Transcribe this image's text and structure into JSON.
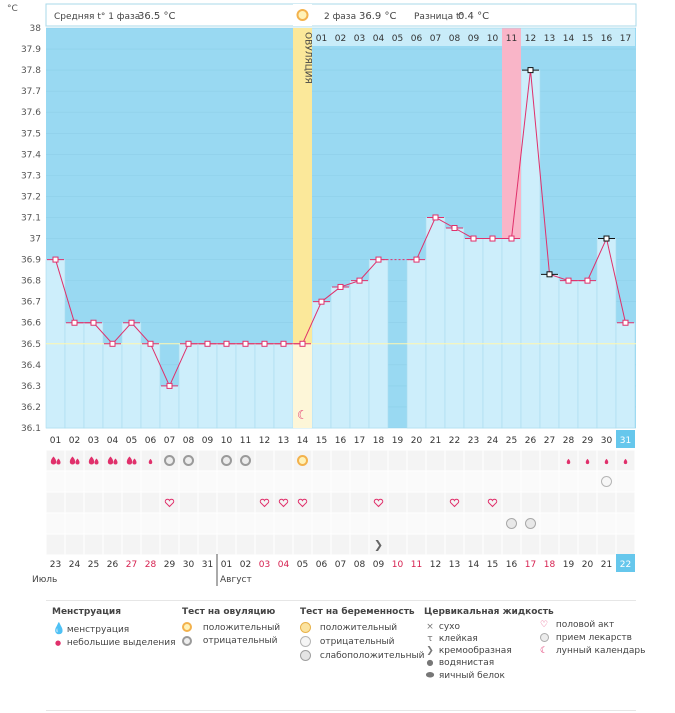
{
  "header": {
    "unit": "°C",
    "phase1_label": "Средняя t° 1 фаза",
    "phase1_value": "36.5 °C",
    "phase2_label": "2 фаза",
    "phase2_value": "36.9 °C",
    "diff_label": "Разница t°",
    "diff_value": "0.4 °C"
  },
  "ovulation_label": "ОВУЛЯЦИЯ",
  "colors": {
    "plot_bg": "#99d9f2",
    "column_fill": "#cdeefb",
    "column_border": "#a9dcef",
    "line": "#e0306b",
    "ovulation": "#fbe89a",
    "highlight_day": "#f9b5c8",
    "today": "#66c7ec",
    "weekend_red": "#d6204f"
  },
  "chart_data": {
    "type": "line",
    "title": "",
    "ylabel": "°C",
    "ylim": [
      36.1,
      38.0
    ],
    "y_ticks": [
      "38",
      "37.9",
      "37.8",
      "37.7",
      "37.6",
      "37.5",
      "37.4",
      "37.3",
      "37.2",
      "37.1",
      "37",
      "36.9",
      "36.8",
      "36.7",
      "36.6",
      "36.5",
      "36.4",
      "36.3",
      "36.2",
      "36.1"
    ],
    "cycle_days": [
      "01",
      "02",
      "03",
      "04",
      "05",
      "06",
      "07",
      "08",
      "09",
      "10",
      "11",
      "12",
      "13",
      "14",
      "15",
      "16",
      "17",
      "18",
      "19",
      "20",
      "21",
      "22",
      "23",
      "24",
      "25",
      "26",
      "27",
      "28",
      "29",
      "30",
      "31"
    ],
    "phase2_days": [
      "01",
      "02",
      "03",
      "04",
      "05",
      "06",
      "07",
      "08",
      "09",
      "10",
      "11",
      "12",
      "13",
      "14",
      "15",
      "16",
      "17"
    ],
    "dates": [
      "23",
      "24",
      "25",
      "26",
      "27",
      "28",
      "29",
      "30",
      "31",
      "01",
      "02",
      "03",
      "04",
      "05",
      "06",
      "07",
      "08",
      "09",
      "10",
      "11",
      "12",
      "13",
      "14",
      "15",
      "16",
      "17",
      "18",
      "19",
      "20",
      "21",
      "22"
    ],
    "weekend_dates": [
      4,
      5,
      11,
      12,
      18,
      19,
      25,
      26
    ],
    "months": [
      "Июль",
      "Август"
    ],
    "temperatures": [
      36.9,
      36.6,
      36.6,
      36.5,
      36.6,
      36.5,
      36.3,
      36.5,
      36.5,
      36.5,
      36.5,
      36.5,
      36.5,
      36.5,
      36.7,
      36.77,
      36.8,
      36.9,
      null,
      36.9,
      37.1,
      37.05,
      37.0,
      37.0,
      37.0,
      37.8,
      36.83,
      36.8,
      36.8,
      37.0,
      36.6
    ],
    "marker_type": [
      "pink",
      "pink",
      "pink",
      "pink",
      "pink",
      "pink",
      "pink",
      "pink",
      "pink",
      "pink",
      "pink",
      "pink",
      "pink",
      "pink",
      "pink",
      "pink",
      "pink",
      "pink",
      null,
      "pink",
      "pink",
      "pink",
      "pink",
      "pink",
      "pink",
      "black",
      "black",
      "pink",
      "pink",
      "black",
      "pink"
    ],
    "coverline": 36.5,
    "ovulation_day_index": 13,
    "highlight_day_index": 24,
    "today_index": 30
  },
  "row_menstruation": [
    "heavy",
    "heavy",
    "heavy",
    "heavy",
    "heavy",
    "light",
    null,
    null,
    null,
    null,
    null,
    null,
    null,
    null,
    null,
    null,
    null,
    null,
    null,
    null,
    null,
    null,
    null,
    null,
    null,
    null,
    null,
    "light",
    "light",
    "light",
    "light"
  ],
  "row_ovulation_test": [
    null,
    null,
    null,
    null,
    null,
    null,
    "negative",
    "negative",
    null,
    "negative",
    "negative",
    null,
    null,
    "positive",
    null,
    null,
    null,
    null,
    null,
    null,
    null,
    null,
    null,
    null,
    null,
    null,
    null,
    null,
    null,
    null,
    null
  ],
  "row_pregnancy_test": [
    null,
    null,
    null,
    null,
    null,
    null,
    null,
    null,
    null,
    null,
    null,
    null,
    null,
    null,
    null,
    null,
    null,
    null,
    null,
    null,
    null,
    null,
    null,
    null,
    null,
    null,
    null,
    null,
    null,
    "negative",
    null
  ],
  "row_intercourse": [
    null,
    null,
    null,
    null,
    null,
    null,
    "heart",
    null,
    null,
    null,
    null,
    "heart",
    "heart",
    "heart",
    null,
    null,
    null,
    "heart",
    null,
    null,
    null,
    "heart",
    null,
    "heart",
    null,
    null,
    null,
    null,
    null,
    null,
    null
  ],
  "row_medication": [
    null,
    null,
    null,
    null,
    null,
    null,
    null,
    null,
    null,
    null,
    null,
    null,
    null,
    null,
    null,
    null,
    null,
    null,
    null,
    null,
    null,
    null,
    null,
    null,
    "pill",
    "pill",
    null,
    null,
    null,
    null,
    null
  ],
  "row_cervical": [
    null,
    null,
    null,
    null,
    null,
    null,
    null,
    null,
    null,
    null,
    null,
    null,
    null,
    null,
    null,
    null,
    null,
    "creamy",
    null,
    null,
    null,
    null,
    null,
    null,
    null,
    null,
    null,
    null,
    null,
    null,
    null
  ],
  "legend": {
    "menstruation": {
      "title": "Менструация",
      "items": [
        {
          "icon": "blood-drop-icon",
          "label": "менструация"
        },
        {
          "icon": "small-drop-icon",
          "label": "небольшие выделения"
        }
      ]
    },
    "ovulation_test": {
      "title": "Тест на овуляцию",
      "items": [
        {
          "icon": "positive-test-icon",
          "label": "положительный"
        },
        {
          "icon": "negative-test-icon",
          "label": "отрицательный"
        }
      ]
    },
    "pregnancy_test": {
      "title": "Тест на беременность",
      "items": [
        {
          "icon": "positive-pregnancy-icon",
          "label": "положительный"
        },
        {
          "icon": "negative-pregnancy-icon",
          "label": "отрицательный"
        },
        {
          "icon": "weak-positive-icon",
          "label": "слабоположительный"
        }
      ]
    },
    "cervical": {
      "title": "Цервикальная жидкость",
      "items": [
        {
          "icon": "dry-icon",
          "label": "сухо"
        },
        {
          "icon": "sticky-icon",
          "label": "клейкая"
        },
        {
          "icon": "creamy-icon",
          "label": "кремообразная"
        },
        {
          "icon": "watery-icon",
          "label": "водянистая"
        },
        {
          "icon": "egg-white-icon",
          "label": "яичный белок"
        }
      ]
    },
    "other": {
      "items": [
        {
          "icon": "heart-icon",
          "label": "половой акт"
        },
        {
          "icon": "pill-icon",
          "label": "прием лекарств"
        },
        {
          "icon": "moon-icon",
          "label": "лунный календарь"
        }
      ]
    }
  }
}
